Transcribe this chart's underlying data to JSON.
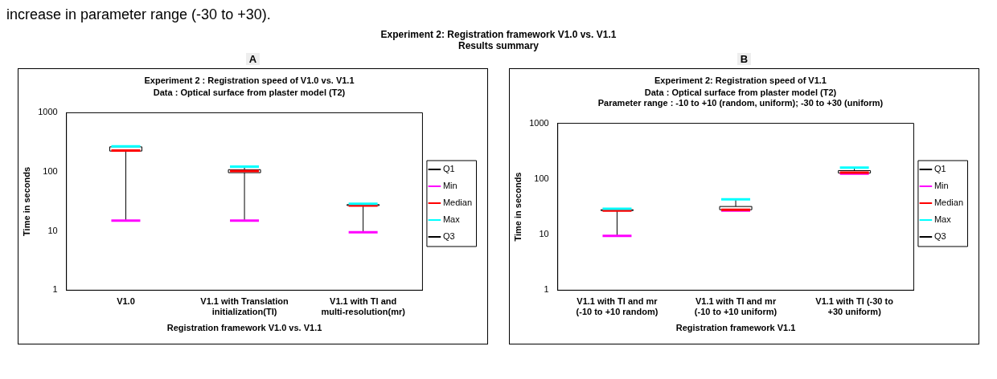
{
  "chart_data": [
    {
      "type": "other",
      "title": "Experiment 2: Registration framework V1.0 vs. V1.1",
      "subtitle": "Results summary",
      "annotations": [
        "increase in parameter range (-30 to +30)."
      ]
    },
    {
      "type": "box",
      "title": "Experiment 2 : Registration speed of V1.0 vs. V1.1",
      "subtitle": "Data : Optical surface from plaster model (T2)",
      "annotations": [
        "A"
      ],
      "xlabel": "Registration framework V1.0 vs. V1.1",
      "ylabel": "Time in seconds",
      "categories": [
        "V1.0",
        "V1.1 with Translation initialization(TI)",
        "V1.1 with TI and multi-resolution(mr)"
      ],
      "boxes": [
        {
          "low": 15,
          "q1": 225,
          "median": 230,
          "q3": 265,
          "high": 270
        },
        {
          "low": 15,
          "q1": 97,
          "median": 103,
          "q3": 109,
          "high": 123
        },
        {
          "low": 9.5,
          "q1": 27,
          "median": 27,
          "q3": 28,
          "high": 29
        }
      ],
      "series": [
        {
          "name": "Q1",
          "color": "#000000",
          "values": [
            null,
            null,
            null
          ]
        },
        {
          "name": "Min",
          "color": "#ff00ff",
          "values": [
            null,
            null,
            null
          ]
        },
        {
          "name": "Median",
          "color": "#ff0000",
          "values": [
            null,
            null,
            null
          ]
        },
        {
          "name": "Max",
          "color": "#00ffff",
          "values": [
            null,
            null,
            null
          ]
        },
        {
          "name": "Q3",
          "color": "#000000",
          "values": [
            null,
            null,
            null
          ]
        }
      ],
      "log": true,
      "ylim": [
        1,
        1000
      ],
      "yticks": [
        1,
        10,
        100,
        1000
      ],
      "grid": false,
      "legend": "right"
    },
    {
      "type": "box",
      "title": "Experiment 2: Registration speed of V1.1",
      "subtitle": "Data : Optical surface from plaster model (T2)\nParameter range : -10 to +10 (random, uniform); -30 to +30 (uniform)",
      "annotations": [
        "B"
      ],
      "xlabel": "Registration framework V1.1",
      "ylabel": "Time in seconds",
      "categories": [
        "V1.1 with TI and mr (-10 to +10 random)",
        "V1.1 with TI and mr (-10 to +10 uniform)",
        "V1.1 with TI (-30 to +30 uniform)"
      ],
      "boxes": [
        {
          "low": 9.5,
          "q1": 27,
          "median": 27,
          "q3": 28,
          "high": 29
        },
        {
          "low": 27,
          "q1": 28,
          "median": 28,
          "q3": 32,
          "high": 43
        },
        {
          "low": 125,
          "q1": 128,
          "median": 130,
          "q3": 141,
          "high": 160
        }
      ],
      "series": [
        {
          "name": "Q1",
          "color": "#000000",
          "values": [
            null,
            null,
            null
          ]
        },
        {
          "name": "Min",
          "color": "#ff00ff",
          "values": [
            null,
            null,
            null
          ]
        },
        {
          "name": "Median",
          "color": "#ff0000",
          "values": [
            null,
            null,
            null
          ]
        },
        {
          "name": "Max",
          "color": "#00ffff",
          "values": [
            null,
            null,
            null
          ]
        },
        {
          "name": "Q3",
          "color": "#000000",
          "values": [
            null,
            null,
            null
          ]
        }
      ],
      "log": true,
      "ylim": [
        1,
        1000
      ],
      "yticks": [
        1,
        10,
        100,
        1000
      ],
      "grid": false,
      "legend": "right"
    }
  ]
}
